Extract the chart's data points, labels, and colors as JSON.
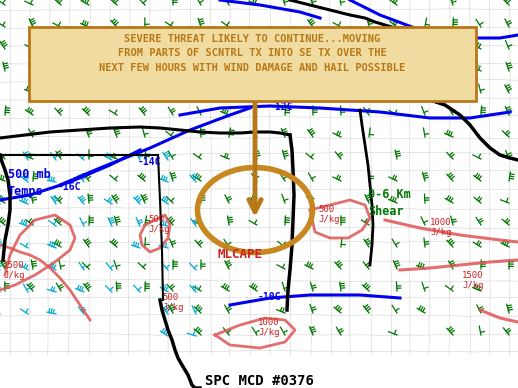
{
  "title": "SPC MCD #0376",
  "announcement_text": "SEVERE THREAT LIKELY TO CONTINUE...MOVING\nFROM PARTS OF SCNTRL TX INTO SE TX OVER THE\nNEXT FEW HOURS WITH WIND DAMAGE AND HAIL POSSIBLE",
  "announcement_color": "#b87818",
  "announcement_box_color": "#b87818",
  "announcement_bg": "#f0dca0",
  "bg_color": "#ffffff",
  "label_500mb": "500 mb\nTemps",
  "label_500mb_color": "#0000ee",
  "label_shear": "0-6 Km\nShear",
  "label_shear_color": "#007700",
  "label_mlcape": "MLCAPE",
  "label_mlcape_color": "#cc2222",
  "temp_label_color": "#0000ee",
  "cape_label_color": "#cc2222",
  "arrow_color": "#b87818",
  "circle_color": "#c88820",
  "state_line_color": "#aaaaaa",
  "blue_contour_color": "#0000ee",
  "green_wind_color": "#007700",
  "cyan_wind_color": "#00aacc",
  "red_cape_color": "#dd5555",
  "black_line_color": "#000000",
  "fig_width": 5.18,
  "fig_height": 3.88,
  "dpi": 100
}
